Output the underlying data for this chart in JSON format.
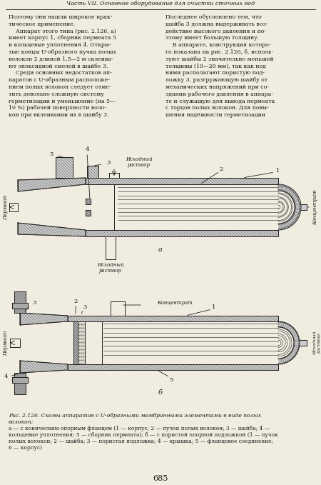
{
  "header_text": "Часть VII. Основное оборудование для очистки сточных вод",
  "left_col_lines": [
    "Поэтому они нашли широкое прак-",
    "тическое применение.",
    "    Аппарат этого типа (рис. 2.126, а)",
    "имеет корпус 1, сборник пермеата 5",
    "и кольцевые уплотнения 4. Откры-",
    "тые концы U-образного пучка полых",
    "волокон 2 длиной 1,5—2 м склеива-",
    "ют эпоксидной смолой в шайбе 3.",
    "    Среди основных недостатков ап-",
    "паратов с U-образным расположе-",
    "нием полых волокон следует отме-",
    "тить довольно сложную систему",
    "герметизации и уменьшение (на 5—",
    "10 %) рабочей поверхности воло-",
    "кон при вклеивании их в шайбу 3."
  ],
  "right_col_lines": [
    "Последнее обусловлено тем, что",
    "шайба 3 должна выдерживать воз-",
    "действие высокого давления и по-",
    "этому имеет большую толщину.",
    "    В аппарате, конструкция которо-",
    "го показана на рис. 2.126, б, исполь-",
    "зуют шайбы 2 значительно меньшей",
    "толщины (10—20 мм), так как под",
    "ними располагают пористую под-",
    "ложку 3, разгружающую шайбу от",
    "механических напряжений при со-",
    "здании рабочего давления в аппара-",
    "те и служащую для вывода пермеата",
    "с торцов полых волокон. Для повы-",
    "шения надёжности герметизации"
  ],
  "cap_line1": "Рис. 2.126. Схемы аппаратов с U-образными мембранными элементами в виде полых",
  "cap_line2": "волокон:",
  "cap_line3": "а — с коническим опорным фланцем (1 — корпус; 2 — пучок полых волокон; 3 — шайба; 4 —",
  "cap_line4": "кольцевые уплотнения; 5 — сборник пермеата); б — с пористой опорной подложкой (1 — пучок",
  "cap_line5": "полых волокон; 2 — шайба; 3 — пористая подложка; 4 — крышка; 5 — фланцевое соединение;",
  "cap_line6": "6 — корпус)",
  "page_number": "685",
  "bg_color": "#f0ece0",
  "text_color": "#1a1a1a",
  "lc": "#222222",
  "hatch_color": "#555555"
}
